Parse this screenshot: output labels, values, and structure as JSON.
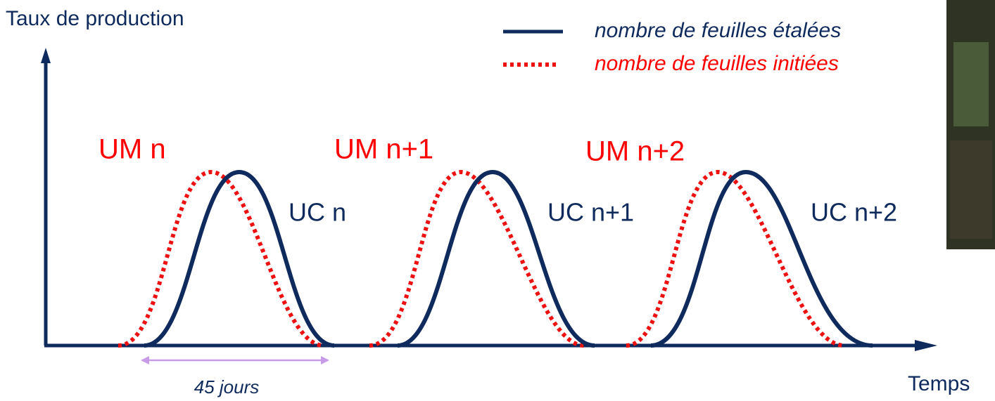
{
  "axes": {
    "y_label": "Taux de production",
    "x_label": "Temps"
  },
  "legend": [
    {
      "label": "nombre de feuilles étalées"
    },
    {
      "label": "nombre de feuilles initiées"
    }
  ],
  "cycles": [
    {
      "um": "UM n",
      "uc": "UC n"
    },
    {
      "um": "UM n+1",
      "uc": "UC n+1"
    },
    {
      "um": "UM n+2",
      "uc": "UC n+2"
    }
  ],
  "duration": "45 jours"
}
